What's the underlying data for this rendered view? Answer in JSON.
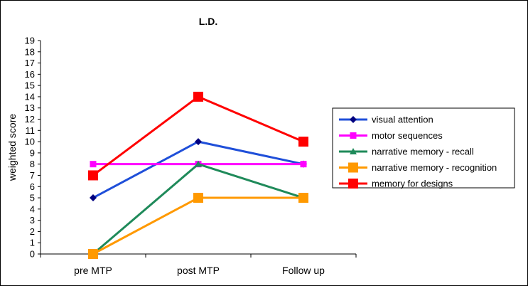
{
  "chart_data": {
    "type": "line",
    "title": "L.D.",
    "xlabel": "",
    "ylabel": "weighted score",
    "ylim": [
      0,
      19
    ],
    "grid": false,
    "legend": "right",
    "categories": [
      "pre MTP",
      "post MTP",
      "Follow up"
    ],
    "series": [
      {
        "name": "visual attention",
        "values": [
          5,
          10,
          8
        ],
        "color": "#1f4fd9",
        "marker_color": "#000080",
        "marker": "diamond"
      },
      {
        "name": "motor sequences",
        "values": [
          8,
          8,
          8
        ],
        "color": "#ff00ff",
        "marker_color": "#ff00ff",
        "marker": "square-small"
      },
      {
        "name": "narrative memory - recall",
        "values": [
          0,
          8,
          5
        ],
        "color": "#1f8a5a",
        "marker_color": "#1f8a5a",
        "marker": "triangle"
      },
      {
        "name": "narrative memory - recognition",
        "values": [
          0,
          5,
          5
        ],
        "color": "#ff9900",
        "marker_color": "#ff9900",
        "marker": "square"
      },
      {
        "name": "memory for designs",
        "values": [
          7,
          14,
          10
        ],
        "color": "#ff0000",
        "marker_color": "#ff0000",
        "marker": "square"
      }
    ]
  }
}
